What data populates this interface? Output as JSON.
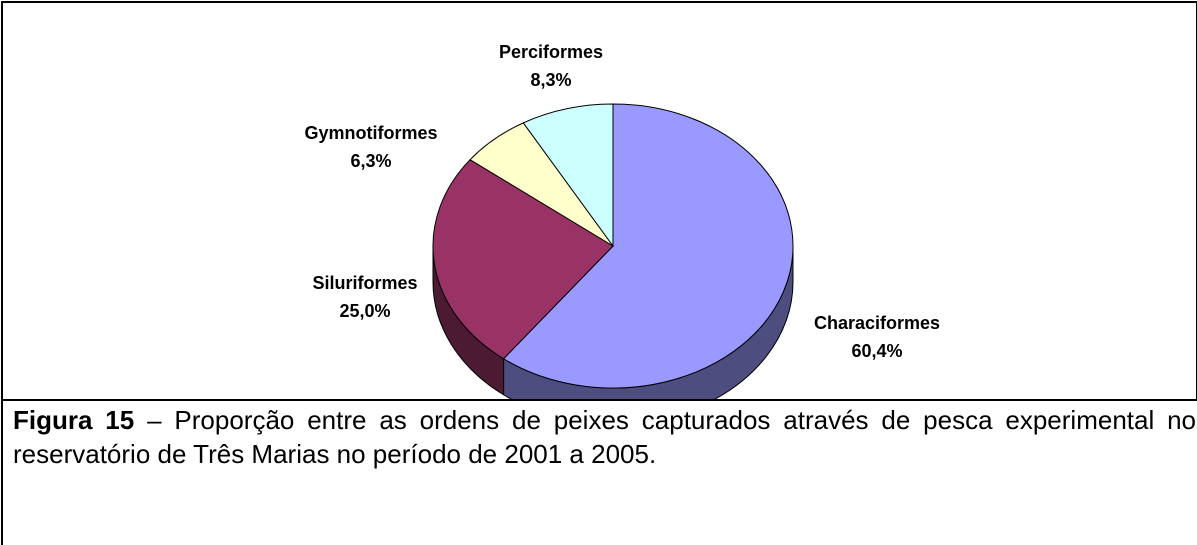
{
  "chart_data": {
    "type": "pie3d",
    "categories": [
      "Characiformes",
      "Siluriformes",
      "Gymnotiformes",
      "Perciformes"
    ],
    "values": [
      60.4,
      25.0,
      6.3,
      8.3
    ],
    "value_labels": [
      "60,4%",
      "25,0%",
      "6,3%",
      "8,3%"
    ],
    "colors": [
      "#9999ff",
      "#993366",
      "#ffffcc",
      "#ccffff"
    ]
  },
  "caption": {
    "label": "Figura 15",
    "text": "– Proporção entre as ordens de peixes capturados através de pesca experimental no reservatório de Três Marias no período de 2001 a 2005."
  }
}
